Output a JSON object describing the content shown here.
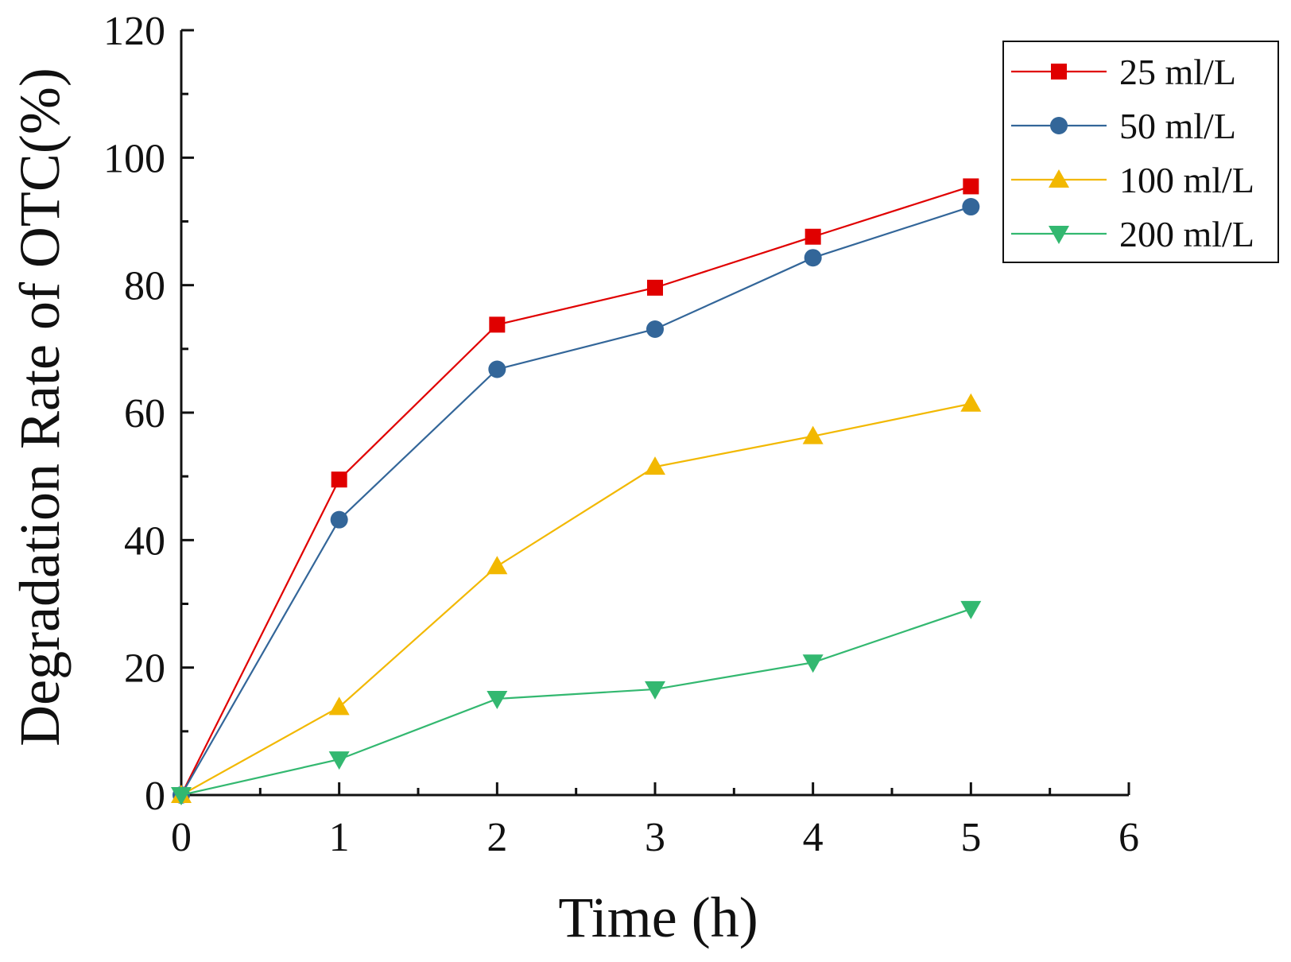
{
  "chart_data": {
    "type": "line",
    "title": "",
    "xlabel": "Time (h)",
    "ylabel": "Degradation Rate of OTC(%)",
    "xlim": [
      0,
      6
    ],
    "ylim": [
      0,
      120
    ],
    "x_ticks": [
      "0",
      "1",
      "2",
      "3",
      "4",
      "5",
      "6"
    ],
    "y_ticks": [
      "0",
      "20",
      "40",
      "60",
      "80",
      "100",
      "120"
    ],
    "x": [
      0,
      1,
      2,
      3,
      4,
      5
    ],
    "grid": false,
    "legend_position": "top-right",
    "series": [
      {
        "name": "25 ml/L",
        "marker": "square",
        "color": "#e00000",
        "values": [
          0,
          49.5,
          73.8,
          79.6,
          87.6,
          95.5
        ]
      },
      {
        "name": "50 ml/L",
        "marker": "circle",
        "color": "#336699",
        "values": [
          0,
          43.2,
          66.8,
          73.1,
          84.3,
          92.3
        ]
      },
      {
        "name": "100 ml/L",
        "marker": "triangle-up",
        "color": "#f2b800",
        "values": [
          0,
          13.8,
          35.9,
          51.5,
          56.3,
          61.4
        ]
      },
      {
        "name": "200 ml/L",
        "marker": "triangle-down",
        "color": "#33b870",
        "values": [
          0,
          5.6,
          15.1,
          16.6,
          20.8,
          29.2
        ]
      }
    ]
  }
}
